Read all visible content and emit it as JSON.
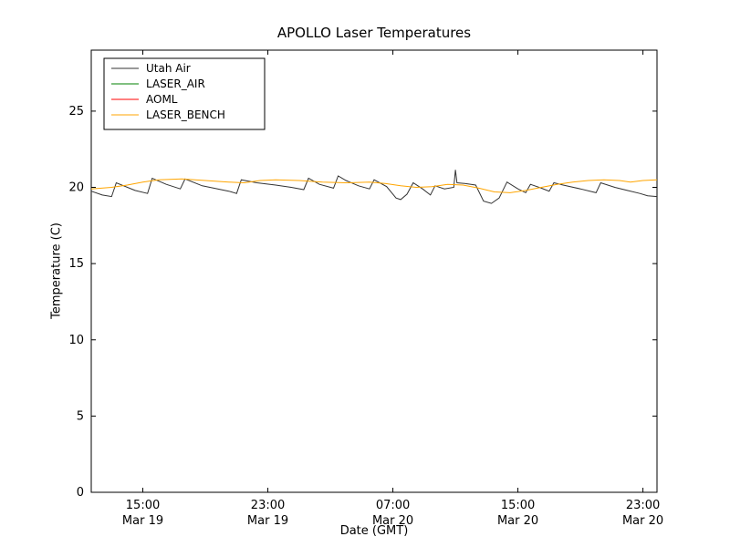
{
  "chart_data": {
    "type": "line",
    "title": "APOLLO Laser Temperatures",
    "xlabel": "Date (GMT)",
    "ylabel": "Temperature (C)",
    "x_encoding": "hours since Mar 19 00:00 GMT",
    "xlim": [
      11.7,
      47.9
    ],
    "ylim": [
      0,
      29
    ],
    "yticks": [
      0,
      5,
      10,
      15,
      20,
      25
    ],
    "xticks": [
      {
        "value": 15,
        "time": "15:00",
        "date": "Mar 19"
      },
      {
        "value": 23,
        "time": "23:00",
        "date": "Mar 19"
      },
      {
        "value": 31,
        "time": "07:00",
        "date": "Mar 20"
      },
      {
        "value": 39,
        "time": "15:00",
        "date": "Mar 20"
      },
      {
        "value": 47,
        "time": "23:00",
        "date": "Mar 20"
      }
    ],
    "grid": false,
    "legend_position": "upper left",
    "frame_color": "#000000",
    "series": [
      {
        "name": "Utah Air",
        "color": "#333333",
        "x": [
          11.7,
          12.4,
          13.0,
          13.3,
          14.5,
          15.3,
          15.6,
          16.5,
          17.4,
          17.7,
          18.8,
          20.5,
          21.0,
          21.3,
          22.3,
          23.5,
          24.5,
          25.3,
          25.6,
          26.3,
          27.2,
          27.5,
          28.0,
          28.8,
          29.5,
          29.8,
          30.6,
          31.2,
          31.5,
          31.9,
          32.3,
          32.9,
          33.4,
          33.7,
          34.3,
          34.9,
          35.0,
          35.1,
          35.6,
          36.3,
          36.8,
          37.3,
          37.8,
          38.3,
          39.0,
          39.5,
          39.8,
          40.5,
          41.0,
          41.3,
          41.9,
          43.0,
          44.0,
          44.3,
          45.2,
          46.0,
          46.8,
          47.3,
          47.9
        ],
        "y": [
          19.75,
          19.5,
          19.4,
          20.3,
          19.8,
          19.6,
          20.6,
          20.2,
          19.9,
          20.55,
          20.1,
          19.75,
          19.6,
          20.5,
          20.3,
          20.15,
          20.0,
          19.85,
          20.6,
          20.2,
          19.95,
          20.75,
          20.45,
          20.1,
          19.9,
          20.5,
          20.05,
          19.3,
          19.2,
          19.55,
          20.3,
          19.9,
          19.5,
          20.1,
          19.9,
          20.0,
          21.15,
          20.3,
          20.25,
          20.15,
          19.1,
          18.95,
          19.3,
          20.35,
          19.9,
          19.65,
          20.2,
          19.95,
          19.75,
          20.3,
          20.15,
          19.9,
          19.65,
          20.3,
          20.0,
          19.8,
          19.6,
          19.45,
          19.4
        ]
      },
      {
        "name": "LASER_AIR",
        "color": "#008000",
        "x": [],
        "y": []
      },
      {
        "name": "AOML",
        "color": "#ff0000",
        "x": [],
        "y": []
      },
      {
        "name": "LASER_BENCH",
        "color": "#ffa500",
        "x": [
          11.7,
          13.0,
          14.0,
          15.0,
          16.0,
          17.5,
          19.0,
          20.5,
          21.5,
          22.5,
          23.5,
          25.0,
          26.5,
          28.0,
          29.5,
          30.5,
          31.5,
          32.5,
          33.5,
          34.5,
          35.5,
          36.5,
          37.5,
          38.5,
          39.5,
          40.5,
          41.5,
          42.5,
          43.5,
          44.5,
          45.5,
          46.2,
          47.0,
          47.9
        ],
        "y": [
          19.9,
          20.0,
          20.15,
          20.35,
          20.5,
          20.55,
          20.45,
          20.35,
          20.3,
          20.45,
          20.5,
          20.45,
          20.35,
          20.3,
          20.35,
          20.25,
          20.1,
          20.0,
          20.05,
          20.2,
          20.15,
          19.95,
          19.7,
          19.65,
          19.8,
          20.0,
          20.2,
          20.35,
          20.45,
          20.5,
          20.45,
          20.35,
          20.45,
          20.5
        ]
      }
    ]
  }
}
